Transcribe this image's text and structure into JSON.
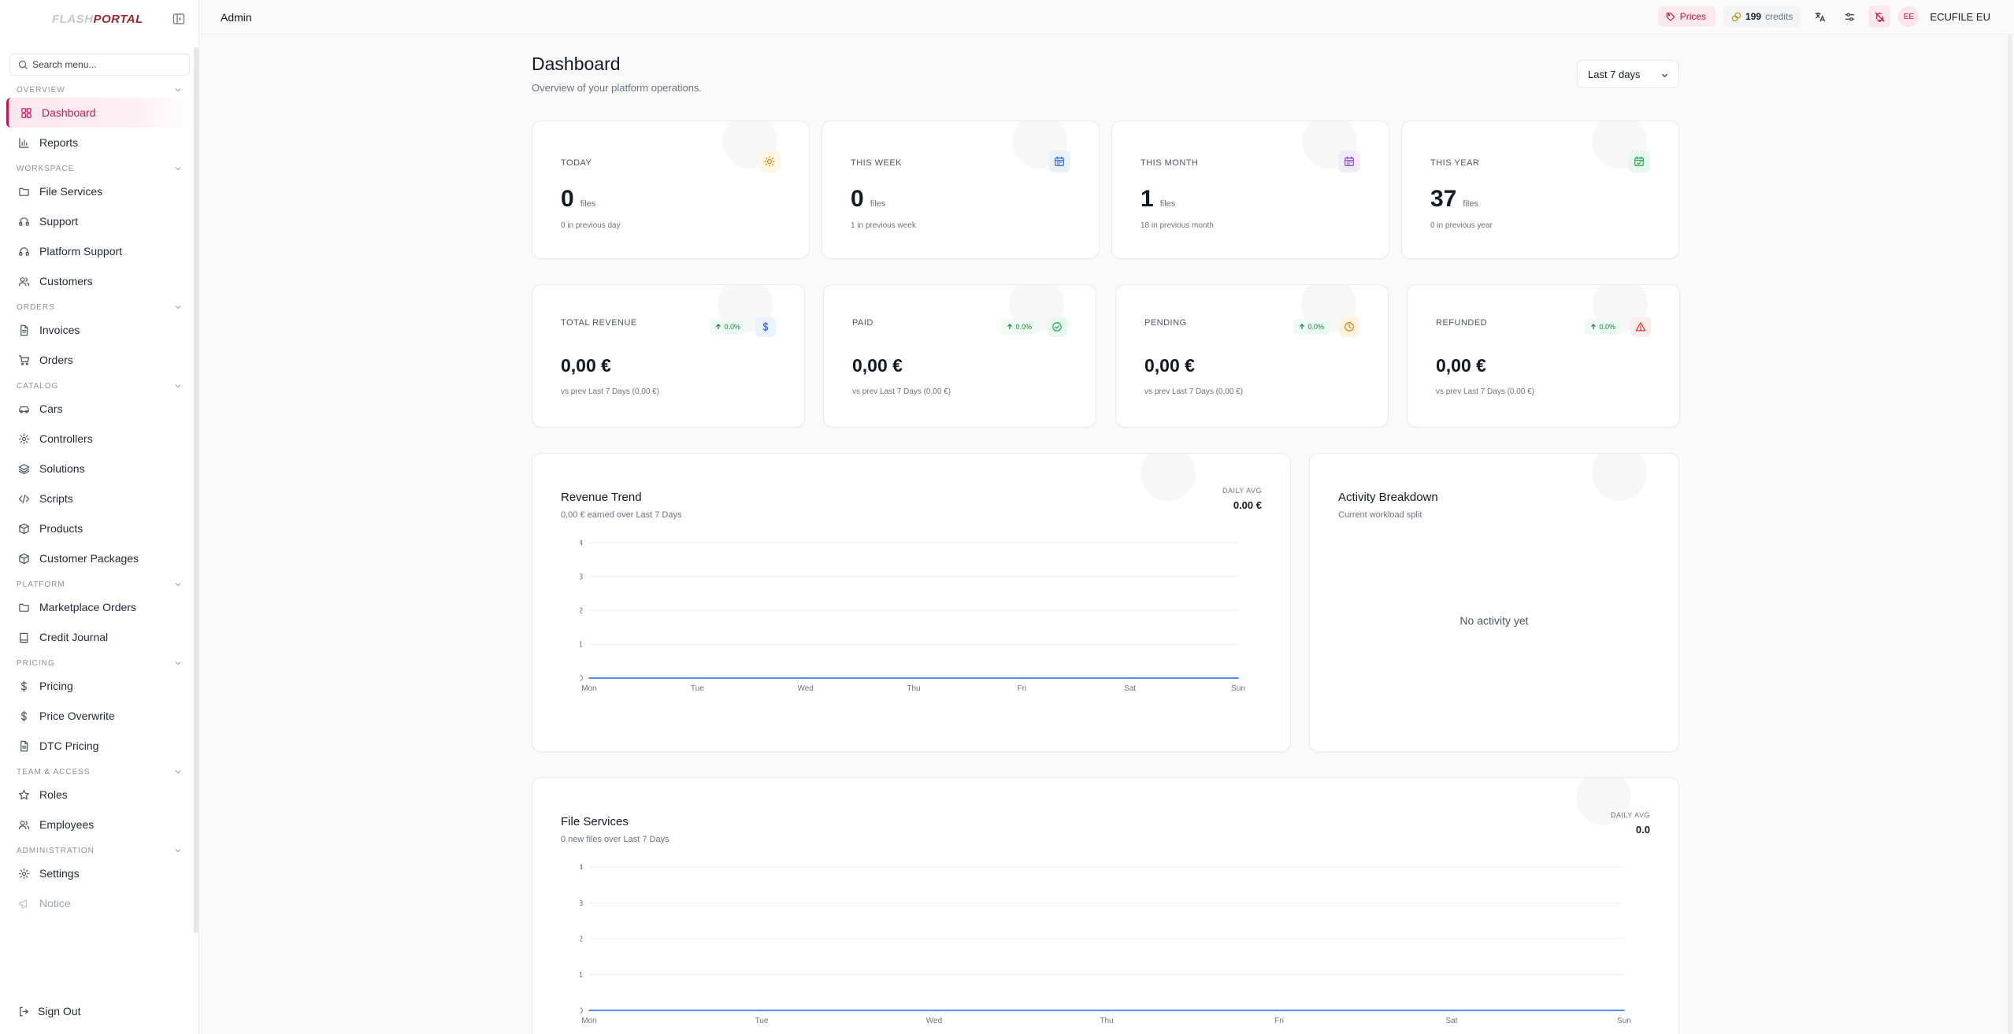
{
  "brand": {
    "logo_left": "FLASH",
    "logo_right": "PORTAL"
  },
  "sidebar": {
    "search_placeholder": "Search menu...",
    "groups": [
      {
        "label": "OVERVIEW",
        "items": [
          {
            "label": "Dashboard",
            "icon": "dashboard-icon",
            "active": true
          },
          {
            "label": "Reports",
            "icon": "bar-chart-icon"
          }
        ]
      },
      {
        "label": "WORKSPACE",
        "items": [
          {
            "label": "File Services",
            "icon": "folder-icon"
          },
          {
            "label": "Support",
            "icon": "headset-icon"
          },
          {
            "label": "Platform Support",
            "icon": "headset-icon"
          },
          {
            "label": "Customers",
            "icon": "users-icon"
          }
        ]
      },
      {
        "label": "ORDERS",
        "items": [
          {
            "label": "Invoices",
            "icon": "file-text-icon"
          },
          {
            "label": "Orders",
            "icon": "cart-icon"
          }
        ]
      },
      {
        "label": "CATALOG",
        "items": [
          {
            "label": "Cars",
            "icon": "car-icon"
          },
          {
            "label": "Controllers",
            "icon": "gear-icon"
          },
          {
            "label": "Solutions",
            "icon": "layers-icon"
          },
          {
            "label": "Scripts",
            "icon": "code-icon"
          },
          {
            "label": "Products",
            "icon": "package-icon"
          },
          {
            "label": "Customer Packages",
            "icon": "package-icon"
          }
        ]
      },
      {
        "label": "PLATFORM",
        "items": [
          {
            "label": "Marketplace Orders",
            "icon": "folder-icon"
          },
          {
            "label": "Credit Journal",
            "icon": "book-icon"
          }
        ]
      },
      {
        "label": "PRICING",
        "items": [
          {
            "label": "Pricing",
            "icon": "dollar-icon"
          },
          {
            "label": "Price Overwrite",
            "icon": "dollar-icon"
          },
          {
            "label": "DTC Pricing",
            "icon": "file-text-icon"
          }
        ]
      },
      {
        "label": "TEAM & ACCESS",
        "items": [
          {
            "label": "Roles",
            "icon": "star-icon"
          },
          {
            "label": "Employees",
            "icon": "users-icon"
          }
        ]
      },
      {
        "label": "ADMINISTRATION",
        "items": [
          {
            "label": "Settings",
            "icon": "gear-icon"
          },
          {
            "label": "Notice",
            "icon": "megaphone-icon",
            "muted": true
          }
        ]
      }
    ],
    "sign_out": "Sign Out"
  },
  "topbar": {
    "title": "Admin",
    "prices": "Prices",
    "credits_value": "199",
    "credits_label": "credits",
    "avatar_initials": "EE",
    "user_name": "ECUFILE EU"
  },
  "page": {
    "title": "Dashboard",
    "subtitle": "Overview of your platform operations.",
    "range": "Last 7 days"
  },
  "stats": [
    {
      "label": "TODAY",
      "value": "0",
      "unit": "files",
      "prev": "0 in previous day",
      "icon": "sun-icon",
      "color": "#d97706",
      "bg": "#fff7e6"
    },
    {
      "label": "THIS WEEK",
      "value": "0",
      "unit": "files",
      "prev": "1 in previous week",
      "icon": "calendar-icon",
      "color": "#2563eb",
      "bg": "#eaf1ff"
    },
    {
      "label": "THIS MONTH",
      "value": "1",
      "unit": "files",
      "prev": "18 in previous month",
      "icon": "calendar-icon",
      "color": "#7c3aed",
      "bg": "#f2ecff"
    },
    {
      "label": "THIS YEAR",
      "value": "37",
      "unit": "files",
      "prev": "0 in previous year",
      "icon": "calendar-check-icon",
      "color": "#16a34a",
      "bg": "#e9f8ee"
    }
  ],
  "revenue": [
    {
      "label": "TOTAL REVENUE",
      "badge": "0.0%",
      "value": "0,00 €",
      "sub": "vs prev Last 7 Days (0,00 €)",
      "icon": "dollar-icon",
      "color": "#2563eb",
      "bg": "#eaf1ff"
    },
    {
      "label": "PAID",
      "badge": "0.0%",
      "value": "0,00 €",
      "sub": "vs prev Last 7 Days (0,00 €)",
      "icon": "check-circle-icon",
      "color": "#16a34a",
      "bg": "#e9f8ee"
    },
    {
      "label": "PENDING",
      "badge": "0.0%",
      "value": "0,00 €",
      "sub": "vs prev Last 7 Days (0,00 €)",
      "icon": "clock-icon",
      "color": "#d97706",
      "bg": "#fff3e0"
    },
    {
      "label": "REFUNDED",
      "badge": "0.0%",
      "value": "0,00 €",
      "sub": "vs prev Last 7 Days (0,00 €)",
      "icon": "alert-triangle-icon",
      "color": "#dc2626",
      "bg": "#fdecec"
    }
  ],
  "revenue_trend": {
    "title": "Revenue Trend",
    "subtitle": "0,00 € earned over Last 7 Days",
    "avg_label": "DAILY AVG",
    "avg_value": "0.00 €"
  },
  "activity": {
    "title": "Activity Breakdown",
    "subtitle": "Current workload split",
    "empty": "No activity yet"
  },
  "file_services": {
    "title": "File Services",
    "subtitle": "0 new files over Last 7 Days",
    "avg_label": "DAILY AVG",
    "avg_value": "0.0"
  },
  "chart_data": [
    {
      "type": "line",
      "categories": [
        "Mon",
        "Tue",
        "Wed",
        "Thu",
        "Fri",
        "Sat",
        "Sun"
      ],
      "values": [
        0,
        0,
        0,
        0,
        0,
        0,
        0
      ],
      "ylim": [
        0,
        4
      ],
      "yticks": [
        0,
        1,
        2,
        3,
        4
      ],
      "color": "#2563eb",
      "grid": true,
      "title": "Revenue Trend"
    },
    {
      "type": "line",
      "categories": [
        "Mon",
        "Tue",
        "Wed",
        "Thu",
        "Fri",
        "Sat",
        "Sun"
      ],
      "values": [
        0,
        0,
        0,
        0,
        0,
        0,
        0
      ],
      "ylim": [
        0,
        4
      ],
      "yticks": [
        0,
        1,
        2,
        3,
        4
      ],
      "color": "#2563eb",
      "grid": true,
      "title": "File Services"
    }
  ]
}
